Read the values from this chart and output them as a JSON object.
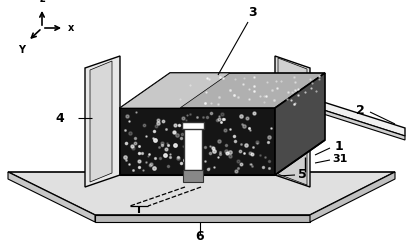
{
  "bg_color": "#ffffff",
  "line_color": "#000000",
  "dark_fill": "#111111",
  "gray_fill": "#555555",
  "light_fill": "#e8e8e8",
  "mid_fill": "#aaaaaa",
  "lfs": 9,
  "lw": 1.0
}
